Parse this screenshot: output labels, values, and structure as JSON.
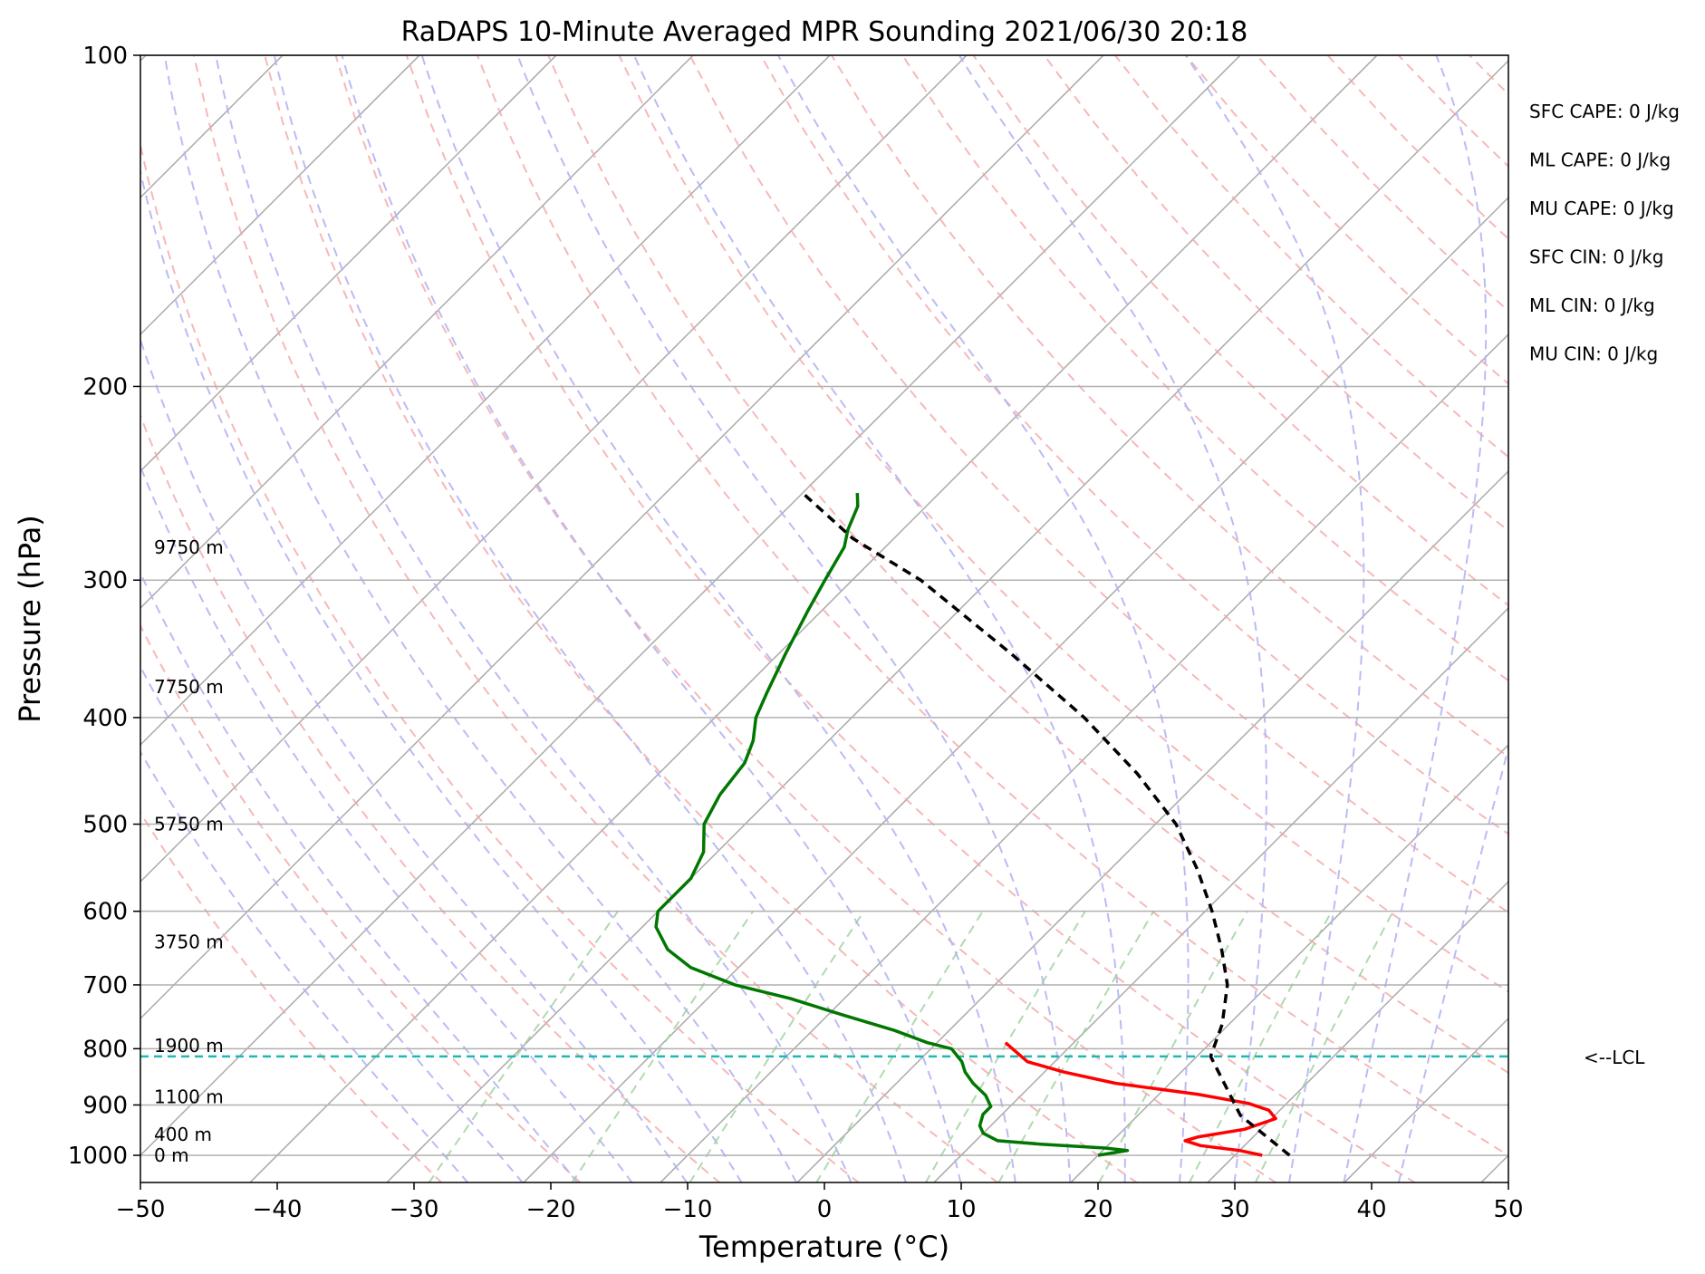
{
  "chart_data": {
    "type": "line",
    "title": "RaDAPS 10-Minute Averaged MPR Sounding 2021/06/30 20:18",
    "xlabel": "Temperature (°C)",
    "ylabel": "Pressure (hPa)",
    "xlim": [
      -50,
      50
    ],
    "ylim": [
      1050,
      100
    ],
    "y_scale": "log",
    "skew": true,
    "x_ticks": [
      -50,
      -40,
      -30,
      -20,
      -10,
      0,
      10,
      20,
      30,
      40,
      50
    ],
    "x_tick_labels": [
      "−50",
      "−40",
      "−30",
      "−20",
      "−10",
      "0",
      "10",
      "20",
      "30",
      "40",
      "50"
    ],
    "y_ticks": [
      100,
      200,
      300,
      400,
      500,
      600,
      700,
      800,
      900,
      1000
    ],
    "y_tick_labels": [
      "100",
      "200",
      "300",
      "400",
      "500",
      "600",
      "700",
      "800",
      "900",
      "1000"
    ],
    "grid": true,
    "height_labels": [
      {
        "p": 1000,
        "text": "0 m"
      },
      {
        "p": 957,
        "text": "400 m"
      },
      {
        "p": 885,
        "text": "1100 m"
      },
      {
        "p": 795,
        "text": "1900 m"
      },
      {
        "p": 640,
        "text": "3750 m"
      },
      {
        "p": 500,
        "text": "5750 m"
      },
      {
        "p": 375,
        "text": "7750 m"
      },
      {
        "p": 280,
        "text": "9750 m"
      }
    ],
    "lcl": {
      "p": 813,
      "label": "<--LCL"
    },
    "indices": [
      "SFC CAPE: 0 J/kg",
      "ML CAPE: 0 J/kg",
      "MU CAPE: 0 J/kg",
      "SFC CIN: 0 J/kg",
      "ML CIN: 0 J/kg",
      "MU CIN: 0 J/kg"
    ],
    "series": [
      {
        "key": "temperature",
        "color": "#ff0000",
        "points": [
          [
            32.0,
            1000
          ],
          [
            30.0,
            990
          ],
          [
            26.8,
            980
          ],
          [
            25.3,
            970
          ],
          [
            26.0,
            962
          ],
          [
            28.8,
            947
          ],
          [
            30.3,
            926
          ],
          [
            29.2,
            910
          ],
          [
            27.2,
            897
          ],
          [
            22.8,
            880
          ],
          [
            16.0,
            860
          ],
          [
            11.4,
            840
          ],
          [
            8.0,
            822
          ],
          [
            5.0,
            790
          ]
        ]
      },
      {
        "key": "dewpoint",
        "color": "#007700",
        "points": [
          [
            20.0,
            1000
          ],
          [
            21.8,
            990
          ],
          [
            20.0,
            985
          ],
          [
            15.0,
            977
          ],
          [
            11.6,
            970
          ],
          [
            10.0,
            955
          ],
          [
            9.2,
            940
          ],
          [
            8.6,
            918
          ],
          [
            8.6,
            903
          ],
          [
            7.4,
            882
          ],
          [
            5.6,
            860
          ],
          [
            4.2,
            840
          ],
          [
            3.2,
            822
          ],
          [
            1.5,
            800
          ],
          [
            -0.7,
            790
          ],
          [
            -4.0,
            770
          ],
          [
            -9.0,
            745
          ],
          [
            -14.0,
            720
          ],
          [
            -19.0,
            700
          ],
          [
            -23.5,
            675
          ],
          [
            -26.5,
            650
          ],
          [
            -29.0,
            620
          ],
          [
            -30.0,
            600
          ],
          [
            -30.0,
            560
          ],
          [
            -31.0,
            530
          ],
          [
            -33.0,
            500
          ],
          [
            -34.0,
            470
          ],
          [
            -34.5,
            440
          ],
          [
            -35.5,
            420
          ],
          [
            -37.0,
            400
          ],
          [
            -38.0,
            380
          ],
          [
            -39.5,
            350
          ],
          [
            -41.0,
            320
          ],
          [
            -42.0,
            300
          ],
          [
            -43.0,
            280
          ],
          [
            -44.0,
            270
          ],
          [
            -45.0,
            257
          ],
          [
            -46.0,
            250
          ]
        ]
      },
      {
        "key": "parcel",
        "color": "#000000",
        "points": [
          [
            34.0,
            1000
          ],
          [
            27.5,
            920
          ],
          [
            21.0,
            813
          ],
          [
            19.5,
            760
          ],
          [
            17.0,
            700
          ],
          [
            14.0,
            650
          ],
          [
            10.5,
            600
          ],
          [
            6.4,
            550
          ],
          [
            1.5,
            500
          ],
          [
            -5.0,
            450
          ],
          [
            -13.0,
            400
          ],
          [
            -23.0,
            350
          ],
          [
            -35.0,
            300
          ],
          [
            -43.0,
            275
          ],
          [
            -50.0,
            250
          ]
        ]
      }
    ]
  }
}
